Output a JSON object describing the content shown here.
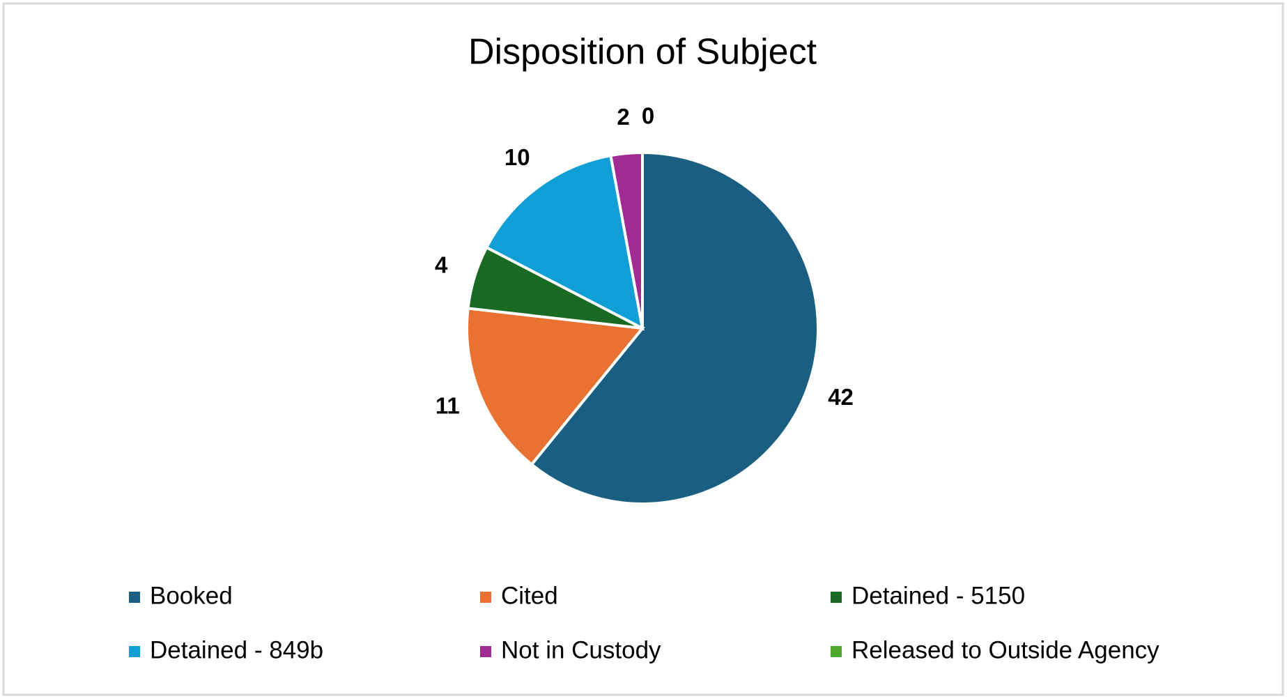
{
  "chart_data": {
    "type": "pie",
    "title": "Disposition of Subject",
    "categories": [
      "Booked",
      "Cited",
      "Detained - 5150",
      "Detained - 849b",
      "Not in Custody",
      "Released to Outside Agency"
    ],
    "values": [
      42,
      11,
      4,
      10,
      2,
      0
    ],
    "colors": [
      "#1a5f82",
      "#e97132",
      "#196b24",
      "#0f9ed5",
      "#a02b93",
      "#4ea72e"
    ]
  }
}
